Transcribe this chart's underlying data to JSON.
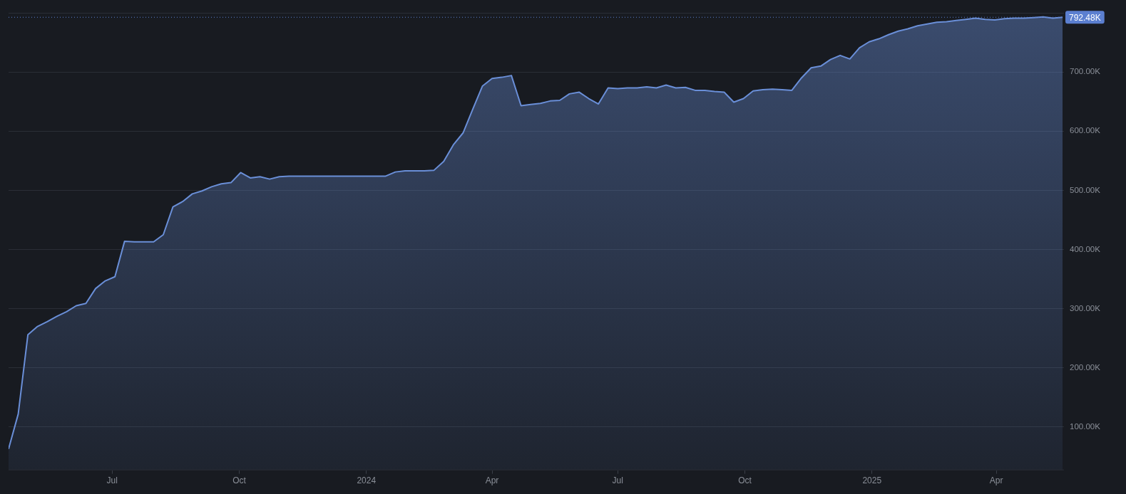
{
  "chart_data": {
    "type": "area",
    "x": [
      "2023-04-17",
      "2023-04-24",
      "2023-05-01",
      "2023-05-08",
      "2023-05-15",
      "2023-05-22",
      "2023-05-29",
      "2023-06-05",
      "2023-06-12",
      "2023-06-19",
      "2023-06-26",
      "2023-07-03",
      "2023-07-10",
      "2023-07-17",
      "2023-07-24",
      "2023-07-31",
      "2023-08-07",
      "2023-08-14",
      "2023-08-21",
      "2023-08-28",
      "2023-09-04",
      "2023-09-11",
      "2023-09-18",
      "2023-09-25",
      "2023-10-02",
      "2023-10-09",
      "2023-10-16",
      "2023-10-23",
      "2023-10-30",
      "2023-11-06",
      "2023-11-13",
      "2023-11-20",
      "2023-11-27",
      "2023-12-04",
      "2023-12-11",
      "2023-12-18",
      "2023-12-25",
      "2024-01-01",
      "2024-01-08",
      "2024-01-15",
      "2024-01-22",
      "2024-01-29",
      "2024-02-05",
      "2024-02-12",
      "2024-02-19",
      "2024-02-26",
      "2024-03-04",
      "2024-03-11",
      "2024-03-18",
      "2024-03-25",
      "2024-04-01",
      "2024-04-08",
      "2024-04-15",
      "2024-04-22",
      "2024-04-29",
      "2024-05-06",
      "2024-05-13",
      "2024-05-20",
      "2024-05-27",
      "2024-06-03",
      "2024-06-10",
      "2024-06-17",
      "2024-06-24",
      "2024-07-01",
      "2024-07-08",
      "2024-07-15",
      "2024-07-22",
      "2024-07-29",
      "2024-08-05",
      "2024-08-12",
      "2024-08-19",
      "2024-08-26",
      "2024-09-02",
      "2024-09-09",
      "2024-09-16",
      "2024-09-23",
      "2024-09-30",
      "2024-10-07",
      "2024-10-14",
      "2024-10-21",
      "2024-10-28",
      "2024-11-04",
      "2024-11-11",
      "2024-11-18",
      "2024-11-25",
      "2024-12-02",
      "2024-12-09",
      "2024-12-16",
      "2024-12-23",
      "2024-12-30",
      "2025-01-06",
      "2025-01-13",
      "2025-01-20",
      "2025-01-27",
      "2025-02-03",
      "2025-02-10",
      "2025-02-17",
      "2025-02-24",
      "2025-03-03",
      "2025-03-10",
      "2025-03-17",
      "2025-03-24",
      "2025-03-31",
      "2025-04-07",
      "2025-04-14",
      "2025-04-21",
      "2025-04-28",
      "2025-05-05",
      "2025-05-12",
      "2025-05-19"
    ],
    "series": [
      {
        "color": "#6a8fd8",
        "values": [
          63000,
          122000,
          256000,
          270000,
          278000,
          287000,
          295000,
          305000,
          309000,
          334000,
          347000,
          354000,
          414000,
          413000,
          413000,
          413000,
          425000,
          472000,
          481000,
          494000,
          499000,
          506000,
          511000,
          513000,
          530000,
          521000,
          523000,
          519000,
          523000,
          524000,
          524000,
          524000,
          524000,
          524000,
          524000,
          524000,
          524000,
          524000,
          524000,
          524000,
          531000,
          533000,
          533000,
          533000,
          534000,
          549000,
          577000,
          597000,
          637000,
          676000,
          689000,
          691000,
          694000,
          643000,
          645000,
          647000,
          651000,
          652000,
          663000,
          666000,
          655000,
          646000,
          673000,
          672000,
          673000,
          673000,
          675000,
          673000,
          678000,
          673000,
          674000,
          669000,
          669000,
          667000,
          666000,
          649000,
          655000,
          668000,
          670000,
          671000,
          670000,
          669000,
          690000,
          707000,
          710000,
          721000,
          728000,
          722000,
          741000,
          751000,
          756000,
          763000,
          769000,
          773000,
          778000,
          781000,
          784000,
          785000,
          787000,
          789000,
          791000,
          789000,
          788000,
          790000,
          791000,
          791000,
          792000,
          793000,
          791000,
          792480
        ]
      }
    ],
    "xlim": [
      "2023-04-17",
      "2025-05-20"
    ],
    "xticks": [
      {
        "value": "2023-07-01",
        "label": "Jul"
      },
      {
        "value": "2023-10-01",
        "label": "Oct"
      },
      {
        "value": "2024-01-01",
        "label": "2024"
      },
      {
        "value": "2024-04-01",
        "label": "Apr"
      },
      {
        "value": "2024-07-01",
        "label": "Jul"
      },
      {
        "value": "2024-10-01",
        "label": "Oct"
      },
      {
        "value": "2025-01-01",
        "label": "2025"
      },
      {
        "value": "2025-04-01",
        "label": "Apr"
      }
    ],
    "ylim": [
      27000,
      800000
    ],
    "yticks": [
      {
        "value": 100000,
        "label": "100.00K"
      },
      {
        "value": 200000,
        "label": "200.00K"
      },
      {
        "value": 300000,
        "label": "300.00K"
      },
      {
        "value": 400000,
        "label": "400.00K"
      },
      {
        "value": 500000,
        "label": "500.00K"
      },
      {
        "value": 600000,
        "label": "600.00K"
      },
      {
        "value": 700000,
        "label": "700.00K"
      }
    ],
    "ref_lines": [
      {
        "axis": "y",
        "value": 792480,
        "label": "792.48K",
        "color": "#5b7fd0",
        "line_style": "dotted"
      }
    ],
    "grid": "y",
    "legend": false
  }
}
